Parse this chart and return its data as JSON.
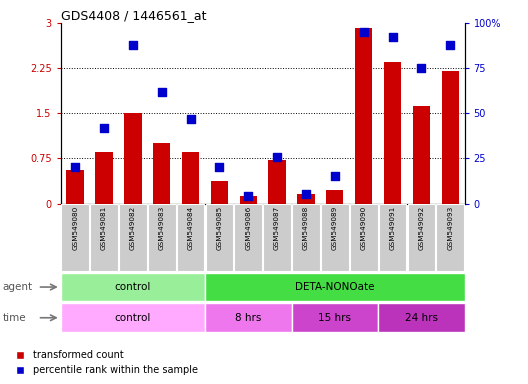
{
  "title": "GDS4408 / 1446561_at",
  "samples": [
    "GSM549080",
    "GSM549081",
    "GSM549082",
    "GSM549083",
    "GSM549084",
    "GSM549085",
    "GSM549086",
    "GSM549087",
    "GSM549088",
    "GSM549089",
    "GSM549090",
    "GSM549091",
    "GSM549092",
    "GSM549093"
  ],
  "transformed_count": [
    0.55,
    0.85,
    1.5,
    1.0,
    0.85,
    0.38,
    0.12,
    0.72,
    0.15,
    0.22,
    2.92,
    2.35,
    1.62,
    2.2
  ],
  "percentile_rank": [
    20,
    42,
    88,
    62,
    47,
    20,
    4,
    26,
    5,
    15,
    95,
    92,
    75,
    88
  ],
  "ylim_left": [
    0,
    3
  ],
  "ylim_right": [
    0,
    100
  ],
  "yticks_left": [
    0,
    0.75,
    1.5,
    2.25,
    3
  ],
  "yticks_right": [
    0,
    25,
    50,
    75,
    100
  ],
  "ytick_labels_right": [
    "0",
    "25",
    "50",
    "75",
    "100%"
  ],
  "bar_color": "#cc0000",
  "dot_color": "#0000cc",
  "agent_row": [
    {
      "label": "control",
      "start": 0,
      "end": 5,
      "color": "#99ee99"
    },
    {
      "label": "DETA-NONOate",
      "start": 5,
      "end": 14,
      "color": "#44dd44"
    }
  ],
  "time_row": [
    {
      "label": "control",
      "start": 0,
      "end": 5,
      "color": "#ffaaff"
    },
    {
      "label": "8 hrs",
      "start": 5,
      "end": 8,
      "color": "#ee77ee"
    },
    {
      "label": "15 hrs",
      "start": 8,
      "end": 11,
      "color": "#cc44cc"
    },
    {
      "label": "24 hrs",
      "start": 11,
      "end": 14,
      "color": "#bb33bb"
    }
  ],
  "tick_bg_color": "#cccccc",
  "background_color": "#ffffff"
}
